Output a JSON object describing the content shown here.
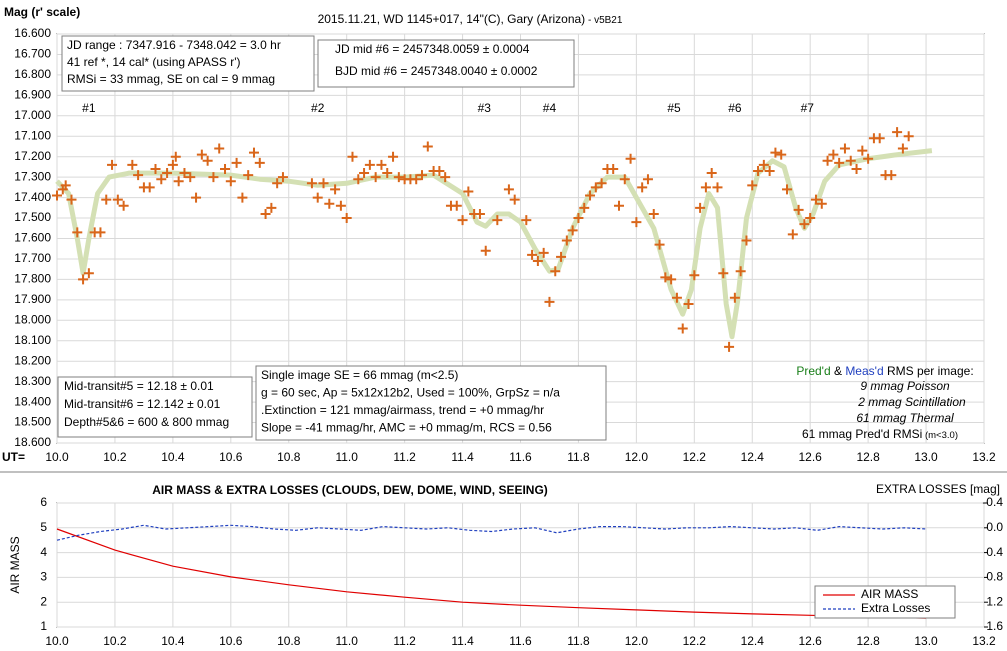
{
  "chart_data": [
    {
      "type": "scatter",
      "title": "2015.11.21, WD 1145+017, 14\"(C), Gary (Arizona)",
      "subtitle": " - v5B21",
      "y_label": "Mag (r' scale)",
      "x_label": "UT=",
      "xlim": [
        10.0,
        13.2
      ],
      "xticks": [
        {
          "value": 10.0,
          "label": "10.0"
        },
        10.2,
        10.4,
        10.6,
        10.8,
        {
          "value": 11.0,
          "label": "11.0"
        },
        11.2,
        11.4,
        11.6,
        11.8,
        {
          "value": 12.0,
          "label": "12.0"
        },
        12.2,
        12.4,
        12.6,
        12.8,
        {
          "value": 13.0,
          "label": "13.0"
        },
        13.2
      ],
      "ylim": [
        16.6,
        18.6
      ],
      "y_reversed": true,
      "yticks": [
        {
          "value": 16.6,
          "label": "16.600"
        },
        {
          "value": 16.7,
          "label": "16.700"
        },
        {
          "value": 16.8,
          "label": "16.800"
        },
        {
          "value": 16.9,
          "label": "16.900"
        },
        {
          "value": 17.0,
          "label": "17.000"
        },
        {
          "value": 17.1,
          "label": "17.100"
        },
        {
          "value": 17.2,
          "label": "17.200"
        },
        {
          "value": 17.3,
          "label": "17.300"
        },
        {
          "value": 17.4,
          "label": "17.400"
        },
        {
          "value": 17.5,
          "label": "17.500"
        },
        {
          "value": 17.6,
          "label": "17.600"
        },
        {
          "value": 17.7,
          "label": "17.700"
        },
        {
          "value": 17.8,
          "label": "17.800"
        },
        {
          "value": 17.9,
          "label": "17.900"
        },
        {
          "value": 18.0,
          "label": "18.000"
        },
        {
          "value": 18.1,
          "label": "18.100"
        },
        {
          "value": 18.2,
          "label": "18.200"
        },
        {
          "value": 18.3,
          "label": "18.300"
        },
        {
          "value": 18.4,
          "label": "18.400"
        },
        {
          "value": 18.5,
          "label": "18.500"
        },
        {
          "value": 18.6,
          "label": "18.600"
        }
      ],
      "grid": true,
      "series": [
        {
          "color": "#d9661a",
          "marker": "plus",
          "x": [
            10.0,
            10.02,
            10.03,
            10.05,
            10.07,
            10.09,
            10.11,
            10.13,
            10.15,
            10.17,
            10.19,
            10.21,
            10.23,
            10.26,
            10.28,
            10.3,
            10.32,
            10.34,
            10.36,
            10.38,
            10.4,
            10.41,
            10.42,
            10.44,
            10.46,
            10.48,
            10.5,
            10.52,
            10.54,
            10.56,
            10.58,
            10.6,
            10.62,
            10.64,
            10.66,
            10.68,
            10.7,
            10.72,
            10.74,
            10.76,
            10.78,
            10.88,
            10.9,
            10.92,
            10.94,
            10.96,
            10.98,
            11.0,
            11.02,
            11.04,
            11.06,
            11.08,
            11.1,
            11.12,
            11.14,
            11.16,
            11.18,
            11.2,
            11.22,
            11.24,
            11.26,
            11.28,
            11.3,
            11.32,
            11.34,
            11.36,
            11.38,
            11.4,
            11.42,
            11.44,
            11.46,
            11.48,
            11.52,
            11.56,
            11.58,
            11.62,
            11.64,
            11.66,
            11.68,
            11.7,
            11.72,
            11.74,
            11.76,
            11.78,
            11.8,
            11.82,
            11.84,
            11.86,
            11.88,
            11.9,
            11.92,
            11.94,
            11.96,
            11.98,
            12.0,
            12.02,
            12.04,
            12.06,
            12.08,
            12.1,
            12.12,
            12.14,
            12.16,
            12.18,
            12.2,
            12.22,
            12.24,
            12.26,
            12.28,
            12.3,
            12.32,
            12.34,
            12.36,
            12.38,
            12.4,
            12.42,
            12.44,
            12.46,
            12.48,
            12.5,
            12.52,
            12.54,
            12.56,
            12.58,
            12.6,
            12.62,
            12.64,
            12.66,
            12.68,
            12.7,
            12.72,
            12.74,
            12.76,
            12.78,
            12.8,
            12.82,
            12.84,
            12.86,
            12.88,
            12.9,
            12.92,
            12.94
          ],
          "values": [
            17.39,
            17.36,
            17.34,
            17.41,
            17.57,
            17.8,
            17.77,
            17.57,
            17.57,
            17.41,
            17.24,
            17.41,
            17.44,
            17.24,
            17.29,
            17.35,
            17.35,
            17.26,
            17.31,
            17.28,
            17.24,
            17.2,
            17.32,
            17.28,
            17.3,
            17.4,
            17.19,
            17.22,
            17.3,
            17.16,
            17.26,
            17.32,
            17.23,
            17.4,
            17.29,
            17.18,
            17.23,
            17.48,
            17.45,
            17.33,
            17.3,
            17.33,
            17.4,
            17.33,
            17.43,
            17.36,
            17.44,
            17.5,
            17.2,
            17.31,
            17.28,
            17.24,
            17.3,
            17.24,
            17.28,
            17.2,
            17.3,
            17.31,
            17.31,
            17.31,
            17.29,
            17.15,
            17.27,
            17.27,
            17.3,
            17.44,
            17.44,
            17.51,
            17.37,
            17.48,
            17.48,
            17.66,
            17.51,
            17.36,
            17.41,
            17.51,
            17.68,
            17.71,
            17.67,
            17.91,
            17.76,
            17.69,
            17.61,
            17.56,
            17.5,
            17.45,
            17.39,
            17.35,
            17.33,
            17.26,
            17.26,
            17.44,
            17.31,
            17.21,
            17.52,
            17.35,
            17.31,
            17.48,
            17.63,
            17.79,
            17.8,
            17.89,
            18.04,
            17.92,
            17.78,
            17.45,
            17.35,
            17.28,
            17.35,
            17.77,
            18.13,
            17.89,
            17.76,
            17.61,
            17.34,
            17.27,
            17.24,
            17.27,
            17.18,
            17.19,
            17.36,
            17.58,
            17.46,
            17.53,
            17.5,
            17.41,
            17.43,
            17.22,
            17.19,
            17.23,
            17.16,
            17.22,
            17.26,
            17.17,
            17.21,
            17.11,
            17.11,
            17.29,
            17.29,
            17.08,
            17.16,
            17.1
          ]
        },
        {
          "color": "#d4e0b4",
          "marker": "line",
          "x": [
            10.0,
            10.04,
            10.07,
            10.09,
            10.11,
            10.14,
            10.18,
            10.25,
            10.4,
            10.6,
            10.7,
            10.8,
            10.9,
            11.0,
            11.1,
            11.2,
            11.3,
            11.4,
            11.45,
            11.48,
            11.52,
            11.56,
            11.6,
            11.65,
            11.7,
            11.73,
            11.78,
            11.84,
            11.9,
            11.96,
            12.0,
            12.06,
            12.12,
            12.16,
            12.19,
            12.22,
            12.25,
            12.28,
            12.31,
            12.33,
            12.35,
            12.38,
            12.42,
            12.47,
            12.51,
            12.55,
            12.58,
            12.61,
            12.65,
            12.7,
            12.8,
            12.9,
            13.02
          ],
          "values": [
            17.32,
            17.38,
            17.6,
            17.77,
            17.6,
            17.38,
            17.3,
            17.28,
            17.28,
            17.29,
            17.31,
            17.32,
            17.34,
            17.33,
            17.3,
            17.3,
            17.29,
            17.38,
            17.52,
            17.54,
            17.48,
            17.48,
            17.52,
            17.65,
            17.76,
            17.75,
            17.55,
            17.38,
            17.3,
            17.3,
            17.4,
            17.55,
            17.85,
            17.97,
            17.85,
            17.55,
            17.38,
            17.45,
            17.92,
            18.08,
            17.9,
            17.5,
            17.28,
            17.22,
            17.25,
            17.45,
            17.55,
            17.48,
            17.32,
            17.24,
            17.21,
            17.19,
            17.17
          ]
        }
      ],
      "event_labels": [
        {
          "label": "#1",
          "x": 10.11
        },
        {
          "label": "#2",
          "x": 10.9
        },
        {
          "label": "#3",
          "x": 11.475
        },
        {
          "label": "#4",
          "x": 11.7
        },
        {
          "label": "#5",
          "x": 12.13
        },
        {
          "label": "#6",
          "x": 12.34
        },
        {
          "label": "#7",
          "x": 12.59
        }
      ],
      "annotations": {
        "info_box": [
          "JD range : 7347.916 - 7348.042 = 3.0 hr",
          "41 ref *, 14 cal* (using APASS r')",
          "RMSi = 33 mmag, SE on cal = 9 mmag"
        ],
        "jd_box": [
          "JD mid #6 = 2457348.0059 ± 0.0004",
          "BJD mid #6 = 2457348.0040 ± 0.0002"
        ],
        "transit_box": [
          "Mid-transit#5 = 12.18 ± 0.01",
          "Mid-transit#6 = 12.142 ± 0.01",
          "Depth#5&6 = 600 & 800 mmag"
        ],
        "image_box": [
          "Single image SE = 66 mmag (m<2.5)",
          "g = 60 sec, Ap = 5x12x12b2, Used = 100%, GrpSz = n/a",
          ".Extinction = 121 mmag/airmass, trend = +0 mmag/hr",
          "Slope = -41 mmag/hr, AMC = +0 mmag/m, RCS = 0.56"
        ],
        "rms_heading": [
          "Pred'd",
          " & ",
          "Meas'd",
          " RMS per image:"
        ],
        "rms_lines": [
          "9 mmag Poisson",
          "2  mmag Scintillation",
          "61  mmag Thermal",
          "61 mmag Pred'd  RMSi"
        ],
        "rms_note": " (m<3.0)"
      }
    },
    {
      "type": "line",
      "title": "AIR MASS & EXTRA LOSSES (CLOUDS, DEW, DOME, WIND, SEEING)",
      "y_label": "AIR MASS",
      "y2_label": "EXTRA LOSSES [mag]",
      "xlim": [
        10.0,
        13.2
      ],
      "xticks": [
        {
          "value": 10.0,
          "label": "10.0"
        },
        10.2,
        10.4,
        10.6,
        10.8,
        {
          "value": 11.0,
          "label": "11.0"
        },
        11.2,
        11.4,
        11.6,
        11.8,
        {
          "value": 12.0,
          "label": "12.0"
        },
        12.2,
        12.4,
        12.6,
        12.8,
        {
          "value": 13.0,
          "label": "13.0"
        },
        13.2
      ],
      "ylim": [
        1,
        6
      ],
      "yticks": [
        1,
        2,
        3,
        4,
        5,
        6
      ],
      "y2lim": [
        -0.4,
        1.6
      ],
      "y2_reversed": true,
      "y2ticks": [
        -0.4,
        {
          "value": 0.0,
          "label": "0.0"
        },
        0.4,
        0.8,
        1.2,
        1.6
      ],
      "grid": true,
      "legend": "lower right",
      "series": [
        {
          "name": "AIR MASS",
          "color": "#e00000",
          "dash": false,
          "x": [
            10.0,
            10.2,
            10.4,
            10.6,
            10.8,
            11.0,
            11.2,
            11.4,
            11.6,
            11.8,
            12.0,
            12.2,
            12.4,
            12.6,
            12.8,
            13.0
          ],
          "values": [
            4.95,
            4.1,
            3.45,
            3.02,
            2.7,
            2.42,
            2.2,
            2.0,
            1.88,
            1.78,
            1.69,
            1.6,
            1.53,
            1.47,
            1.41,
            1.36
          ]
        },
        {
          "name": "Extra Losses",
          "color": "#1f3fbf",
          "dash": true,
          "axis": "y2",
          "x": [
            10,
            10.075,
            10.15,
            10.225,
            10.3,
            10.375,
            10.45,
            10.525,
            10.6,
            10.675,
            10.75,
            10.825,
            10.9,
            10.975,
            11.05,
            11.125,
            11.2,
            11.275,
            11.35,
            11.425,
            11.5,
            11.575,
            11.65,
            11.725,
            11.8,
            11.875,
            11.95,
            12.025,
            12.1,
            12.175,
            12.25,
            12.325,
            12.4,
            12.475,
            12.55,
            12.625,
            12.7,
            12.775,
            12.85,
            12.925,
            13
          ],
          "values": [
            0.2,
            0.12,
            0.06,
            0.02,
            -0.04,
            0.02,
            0.0,
            -0.02,
            -0.04,
            -0.02,
            0.02,
            0.04,
            0.0,
            0.02,
            0.04,
            -0.02,
            0.0,
            0.02,
            0.0,
            0.04,
            0.06,
            0.02,
            0.0,
            0.08,
            0.02,
            -0.02,
            -0.02,
            0.0,
            0.02,
            0.0,
            0.0,
            -0.02,
            0.0,
            0.02,
            0.0,
            0.04,
            -0.02,
            0.0,
            0.02,
            0.0,
            0.02
          ]
        }
      ]
    }
  ]
}
